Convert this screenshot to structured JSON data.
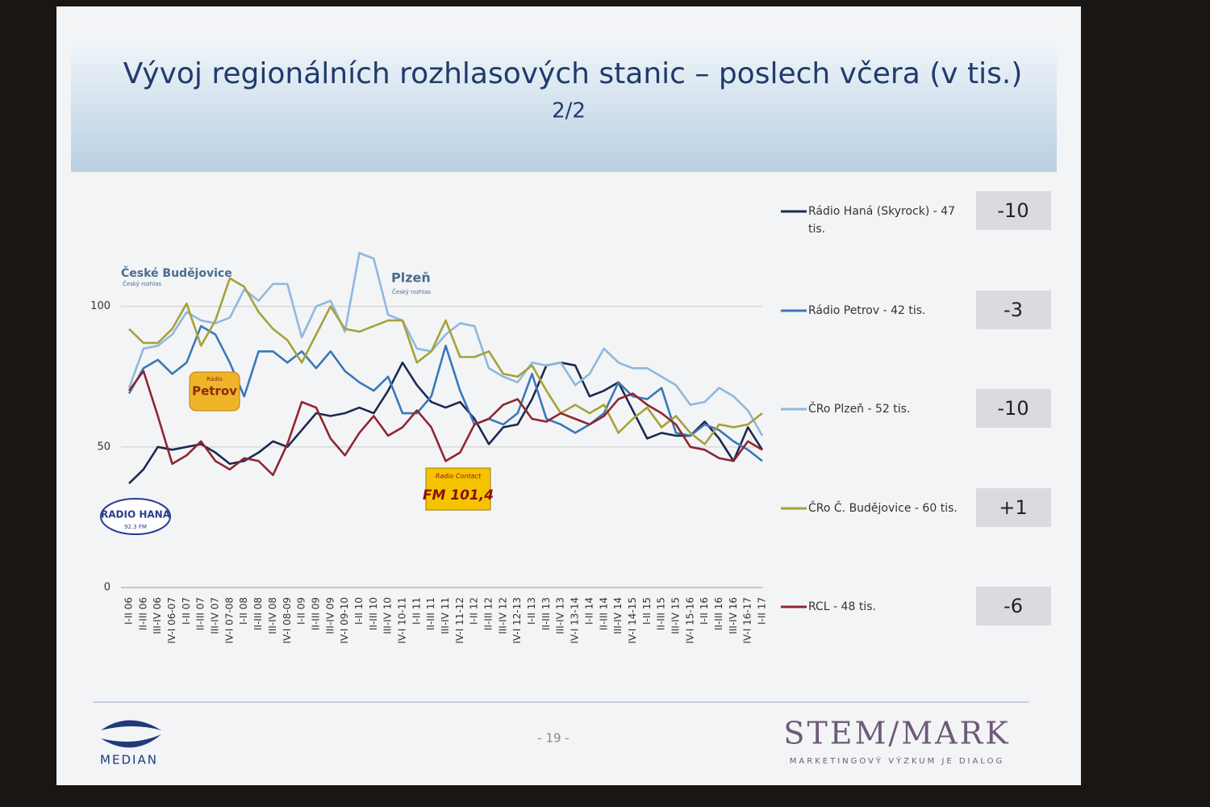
{
  "chart_data": {
    "type": "line",
    "title": "Vývoj regionálních rozhlasových stanic – poslech včera (v tis.)",
    "subtitle": "2/2",
    "categories": [
      "I-II 06",
      "II-III 06",
      "III-IV 06",
      "IV-I 06-07",
      "I-II 07",
      "II-III 07",
      "III-IV 07",
      "IV-I 07-08",
      "I-II 08",
      "II-III 08",
      "III-IV 08",
      "IV-I 08-09",
      "I-II 09",
      "II-III 09",
      "III-IV 09",
      "IV-I 09-10",
      "I-II 10",
      "II-III 10",
      "III-IV 10",
      "IV-I 10-11",
      "I-II 11",
      "II-III 11",
      "III-IV 11",
      "IV-I 11-12",
      "I-II 12",
      "II-III 12",
      "III-IV 12",
      "IV-I 12-13",
      "I-II 13",
      "II-III 13",
      "III-IV 13",
      "IV-I 13-14",
      "I-II 14",
      "II-III 14",
      "III-IV 14",
      "IV-I 14-15",
      "I-II 15",
      "II-III 15",
      "III-IV 15",
      "IV-I 15-16",
      "I-II 16",
      "II-III 16",
      "III-IV 16",
      "IV-I 16-17",
      "I-II 17"
    ],
    "ylim": [
      0,
      120
    ],
    "yticks": [
      0,
      50,
      100
    ],
    "grid": true,
    "series": [
      {
        "name": "Rádio Haná (Skyrock) - 47 tis.",
        "color": "#1c2a4e",
        "change": -10,
        "values": [
          37,
          42,
          50,
          49,
          50,
          51,
          48,
          44,
          45,
          48,
          52,
          50,
          56,
          62,
          61,
          62,
          64,
          62,
          70,
          80,
          72,
          66,
          64,
          66,
          60,
          51,
          57,
          58,
          67,
          79,
          80,
          79,
          68,
          70,
          73,
          63,
          53,
          55,
          54,
          54,
          59,
          53,
          45,
          57,
          49
        ]
      },
      {
        "name": "Rádio Petrov - 42 tis.",
        "color": "#3a78b8",
        "change": -3,
        "values": [
          69,
          78,
          81,
          76,
          80,
          93,
          90,
          80,
          68,
          84,
          84,
          80,
          84,
          78,
          84,
          77,
          73,
          70,
          75,
          62,
          62,
          68,
          86,
          70,
          58,
          60,
          58,
          62,
          76,
          60,
          58,
          55,
          58,
          62,
          73,
          68,
          67,
          71,
          55,
          54,
          58,
          56,
          52,
          49,
          45
        ]
      },
      {
        "name": "ČRo Plzeň - 52 tis.",
        "color": "#8fb8de",
        "change": -10,
        "values": [
          71,
          85,
          86,
          90,
          98,
          95,
          94,
          96,
          106,
          102,
          108,
          108,
          89,
          100,
          102,
          91,
          119,
          117,
          97,
          95,
          85,
          84,
          90,
          94,
          93,
          78,
          75,
          73,
          80,
          79,
          80,
          72,
          76,
          85,
          80,
          78,
          78,
          75,
          72,
          65,
          66,
          71,
          68,
          63,
          54
        ]
      },
      {
        "name": "ČRo Č. Budějovice - 60 tis.",
        "color": "#a5a23a",
        "change": 1,
        "change_label": "+1",
        "values": [
          92,
          87,
          87,
          92,
          101,
          86,
          95,
          110,
          107,
          98,
          92,
          88,
          80,
          90,
          100,
          92,
          91,
          93,
          95,
          95,
          80,
          84,
          95,
          82,
          82,
          84,
          76,
          75,
          79,
          70,
          62,
          65,
          62,
          65,
          55,
          60,
          64,
          57,
          61,
          55,
          51,
          58,
          57,
          58,
          62
        ]
      },
      {
        "name": "RCL - 48 tis.",
        "color": "#8e2630",
        "change": -6,
        "values": [
          70,
          77,
          61,
          44,
          47,
          52,
          45,
          42,
          46,
          45,
          40,
          51,
          66,
          64,
          53,
          47,
          55,
          61,
          54,
          57,
          63,
          57,
          45,
          48,
          58,
          60,
          65,
          67,
          60,
          59,
          62,
          60,
          58,
          61,
          67,
          69,
          65,
          62,
          58,
          50,
          49,
          46,
          45,
          52,
          49
        ]
      }
    ],
    "annotations": [
      "České Budějovice",
      "Český rozhlas",
      "Plzeň",
      "Český rozhlas",
      "Rádio",
      "Petrov",
      "Radio Contact",
      "FM 101,4",
      "RADIO HANÁ",
      "92.3 FM"
    ],
    "footer": {
      "page": "- 19 -",
      "left_logo": "MEDIAN",
      "right_logo": "STEM/MARK",
      "right_tagline": "MARKETINGOVÝ VÝZKUM JE DIALOG"
    }
  }
}
